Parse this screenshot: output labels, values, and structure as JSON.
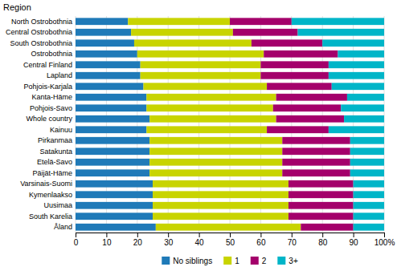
{
  "chart_data": {
    "type": "bar",
    "orientation": "horizontal",
    "stacked": true,
    "ylabel": "Region",
    "categories": [
      "North Ostrobothnia",
      "Central Ostrobothnia",
      "South Ostrobothnia",
      "Ostrobothnia",
      "Central Finland",
      "Lapland",
      "Pohjois-Karjala",
      "Kanta-Häme",
      "Pohjois-Savo",
      "Whole country",
      "Kainuu",
      "Pirkanmaa",
      "Satakunta",
      "Etelä-Savo",
      "Päijät-Häme",
      "Varsinais-Suomi",
      "Kymenlaakso",
      "Uusimaa",
      "South Karelia",
      "Åland"
    ],
    "series": [
      {
        "name": "No siblings",
        "color": "#1f7ab8",
        "values": [
          17,
          18,
          19,
          20,
          21,
          21,
          22,
          23,
          23,
          24,
          23,
          24,
          24,
          24,
          24,
          25,
          25,
          25,
          25,
          26
        ]
      },
      {
        "name": "1",
        "color": "#c8d400",
        "values": [
          33,
          33,
          38,
          41,
          39,
          39,
          40,
          42,
          41,
          41,
          39,
          43,
          43,
          43,
          43,
          44,
          44,
          44,
          44,
          47
        ]
      },
      {
        "name": "2",
        "color": "#a4006b",
        "values": [
          20,
          21,
          23,
          24,
          22,
          22,
          21,
          23,
          22,
          22,
          20,
          22,
          22,
          22,
          22,
          21,
          21,
          21,
          21,
          17
        ]
      },
      {
        "name": "3+",
        "color": "#00b5c8",
        "values": [
          30,
          28,
          20,
          15,
          18,
          18,
          17,
          12,
          14,
          13,
          18,
          11,
          11,
          11,
          11,
          10,
          10,
          10,
          10,
          10
        ]
      }
    ],
    "xlim": [
      0,
      100
    ],
    "xticks": [
      0,
      10,
      20,
      30,
      40,
      50,
      60,
      70,
      80,
      90,
      {
        "value": 100,
        "label": "100%"
      }
    ],
    "grid": true,
    "legend": "bottom"
  }
}
